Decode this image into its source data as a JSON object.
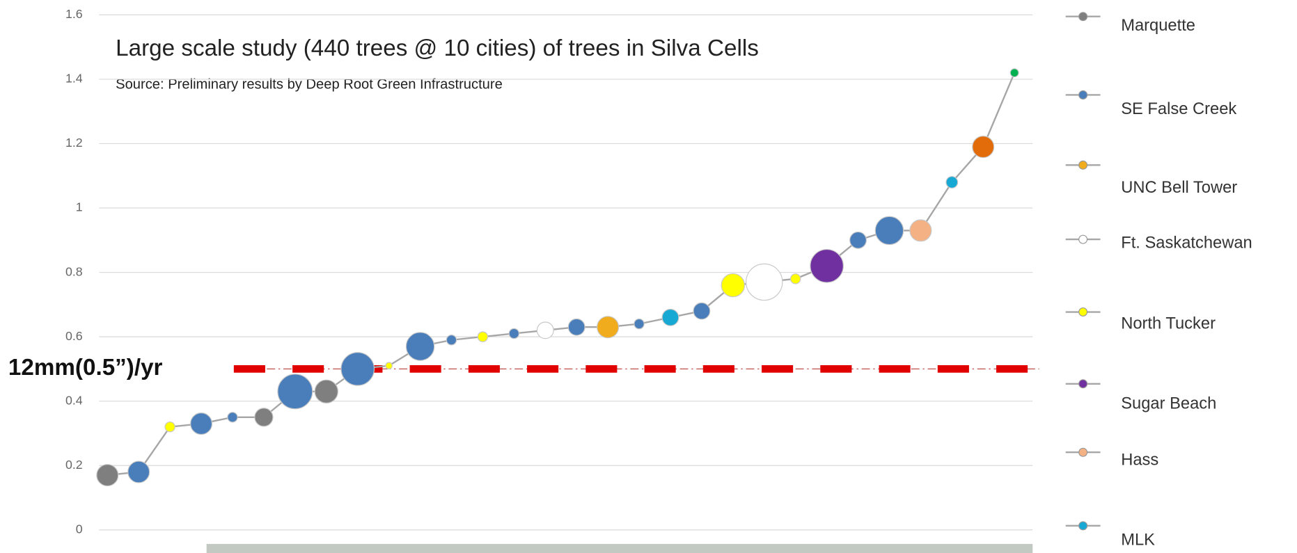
{
  "chart_data": {
    "type": "line",
    "title": "Large scale study (440 trees @ 10 cities) of trees in Silva Cells",
    "subtitle": "Source: Preliminary results by Deep Root Green Infrastructure",
    "categories": [
      null,
      null,
      null,
      null,
      null,
      null,
      null,
      null,
      null,
      null,
      null,
      null,
      null,
      null,
      null,
      null,
      null,
      null,
      null,
      null,
      null,
      null,
      null,
      null,
      null,
      null,
      null,
      null,
      null,
      null
    ],
    "series": [
      {
        "color": "#a6a6a6",
        "values": [
          0.17,
          0.18,
          0.32,
          0.33,
          0.35,
          0.35,
          0.43,
          0.43,
          0.5,
          0.51,
          0.57,
          0.59,
          0.6,
          0.61,
          0.62,
          0.63,
          0.63,
          0.64,
          0.66,
          0.68,
          0.76,
          0.77,
          0.78,
          0.82,
          0.9,
          0.93,
          0.93,
          1.08,
          1.19,
          1.42
        ],
        "sizes": [
          13,
          13,
          6,
          13,
          6,
          11,
          21,
          14,
          20,
          4,
          17,
          6,
          6,
          6,
          10,
          10,
          13,
          6,
          10,
          10,
          14,
          22,
          6,
          20,
          10,
          17,
          13,
          7,
          13,
          5
        ],
        "point_colors": [
          "#7f7f7f",
          "#4a7ebb",
          "#ffff00",
          "#4a7ebb",
          "#4a7ebb",
          "#7f7f7f",
          "#4a7ebb",
          "#7f7f7f",
          "#4a7ebb",
          "#ffff00",
          "#4a7ebb",
          "#4a7ebb",
          "#ffff00",
          "#4a7ebb",
          "#ffffff",
          "#4a7ebb",
          "#f0ac1d",
          "#4a7ebb",
          "#17a8d4",
          "#4a7ebb",
          "#ffff00",
          "#ffffff",
          "#ffff00",
          "#7030a0",
          "#4a7ebb",
          "#4a7ebb",
          "#f4b183",
          "#17a8d4",
          "#e36c0a",
          "#00b050"
        ]
      }
    ],
    "legend": [
      {
        "name": "Marquette",
        "color": "#7f7f7f"
      },
      {
        "name": "SE False Creek",
        "color": "#4a7ebb"
      },
      {
        "name": "UNC Bell Tower",
        "color": "#f0ac1d"
      },
      {
        "name": "Ft. Saskatchewan",
        "color": "#ffffff"
      },
      {
        "name": "North Tucker",
        "color": "#ffff00"
      },
      {
        "name": "Sugar Beach",
        "color": "#7030a0"
      },
      {
        "name": "Hass",
        "color": "#f4b183"
      },
      {
        "name": "MLK",
        "color": "#17a8d4"
      }
    ],
    "reference_line": {
      "value": 0.5,
      "label": "12mm(0.5”)/yr",
      "color": "#e00000"
    },
    "ylim": [
      0,
      1.6
    ],
    "yticks": [
      0,
      0.2,
      0.4,
      0.6,
      0.8,
      1,
      1.2,
      1.4,
      1.6
    ],
    "grid": true
  }
}
